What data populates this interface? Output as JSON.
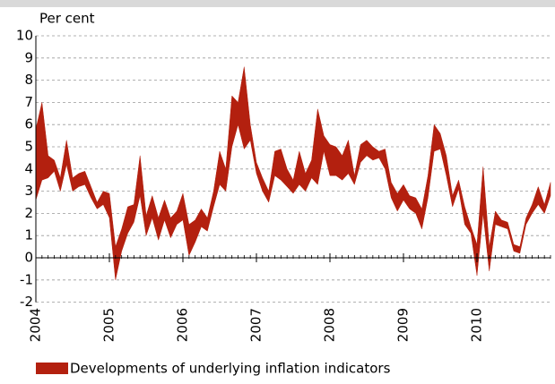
{
  "chart_data": {
    "type": "range-area",
    "y_label": "Per cent",
    "x": [
      2004,
      2004.0833,
      2004.1667,
      2004.25,
      2004.3333,
      2004.4167,
      2004.5,
      2004.5833,
      2004.6667,
      2004.75,
      2004.8333,
      2004.9167,
      2005,
      2005.0833,
      2005.1667,
      2005.25,
      2005.3333,
      2005.4167,
      2005.5,
      2005.5833,
      2005.6667,
      2005.75,
      2005.8333,
      2005.9167,
      2006,
      2006.0833,
      2006.1667,
      2006.25,
      2006.3333,
      2006.4167,
      2006.5,
      2006.5833,
      2006.6667,
      2006.75,
      2006.8333,
      2006.9167,
      2007,
      2007.0833,
      2007.1667,
      2007.25,
      2007.3333,
      2007.4167,
      2007.5,
      2007.5833,
      2007.6667,
      2007.75,
      2007.8333,
      2007.9167,
      2008,
      2008.0833,
      2008.1667,
      2008.25,
      2008.3333,
      2008.4167,
      2008.5,
      2008.5833,
      2008.6667,
      2008.75,
      2008.8333,
      2008.9167,
      2009,
      2009.0833,
      2009.1667,
      2009.25,
      2009.3333,
      2009.4167,
      2009.5,
      2009.5833,
      2009.6667,
      2009.75,
      2009.8333,
      2009.9167,
      2010,
      2010.0833,
      2010.1667,
      2010.25,
      2010.3333,
      2010.4167,
      2010.5,
      2010.5833,
      2010.6667,
      2010.75,
      2010.8333,
      2010.9167,
      2011
    ],
    "series": [
      {
        "name": "Developments of underlying inflation indicators",
        "color": "#b3200f",
        "low": [
          2.6,
          3.5,
          3.6,
          3.9,
          3.0,
          4.2,
          3.0,
          3.2,
          3.3,
          2.7,
          2.2,
          2.4,
          1.8,
          -1.0,
          0.3,
          1.1,
          1.6,
          2.8,
          1.0,
          1.8,
          0.8,
          1.7,
          0.9,
          1.5,
          1.7,
          0.1,
          0.7,
          1.4,
          1.2,
          2.3,
          3.3,
          3.0,
          5.0,
          6.0,
          4.9,
          5.3,
          3.8,
          3.0,
          2.5,
          3.7,
          3.5,
          3.2,
          2.9,
          3.3,
          3.0,
          3.6,
          3.3,
          4.8,
          3.7,
          3.7,
          3.5,
          3.8,
          3.3,
          4.3,
          4.6,
          4.4,
          4.5,
          4.0,
          2.7,
          2.1,
          2.6,
          2.2,
          2.0,
          1.3,
          2.7,
          4.8,
          4.9,
          3.7,
          2.3,
          3.1,
          1.5,
          1.1,
          -0.8,
          2.0,
          -0.6,
          1.5,
          1.4,
          1.3,
          0.3,
          0.2,
          1.5,
          2.0,
          2.4,
          2.0,
          2.8
        ],
        "high": [
          5.8,
          7.0,
          4.6,
          4.4,
          3.6,
          5.3,
          3.6,
          3.8,
          3.9,
          3.2,
          2.5,
          3.0,
          2.9,
          0.5,
          1.3,
          2.3,
          2.4,
          4.6,
          1.9,
          2.8,
          1.8,
          2.6,
          1.8,
          2.1,
          2.9,
          1.5,
          1.7,
          2.2,
          1.8,
          3.0,
          4.8,
          4.0,
          7.3,
          7.0,
          8.6,
          6.0,
          4.3,
          3.6,
          3.0,
          4.8,
          4.9,
          4.0,
          3.5,
          4.8,
          3.8,
          4.4,
          6.7,
          5.5,
          5.1,
          5.0,
          4.6,
          5.3,
          3.7,
          5.1,
          5.3,
          5.0,
          4.8,
          4.9,
          3.4,
          2.9,
          3.3,
          2.8,
          2.7,
          2.2,
          3.7,
          6.0,
          5.6,
          4.6,
          2.8,
          3.5,
          2.3,
          1.4,
          0.6,
          4.1,
          0.5,
          2.1,
          1.7,
          1.6,
          0.6,
          0.5,
          1.8,
          2.4,
          3.2,
          2.4,
          3.4
        ]
      }
    ],
    "xlim": [
      2004,
      2011
    ],
    "xticks": [
      2004,
      2005,
      2006,
      2007,
      2008,
      2009,
      2010
    ],
    "ylim": [
      -2,
      10
    ],
    "yticks": [
      -2,
      -1,
      0,
      1,
      2,
      3,
      4,
      5,
      6,
      7,
      8,
      9,
      10
    ],
    "grid": true
  }
}
